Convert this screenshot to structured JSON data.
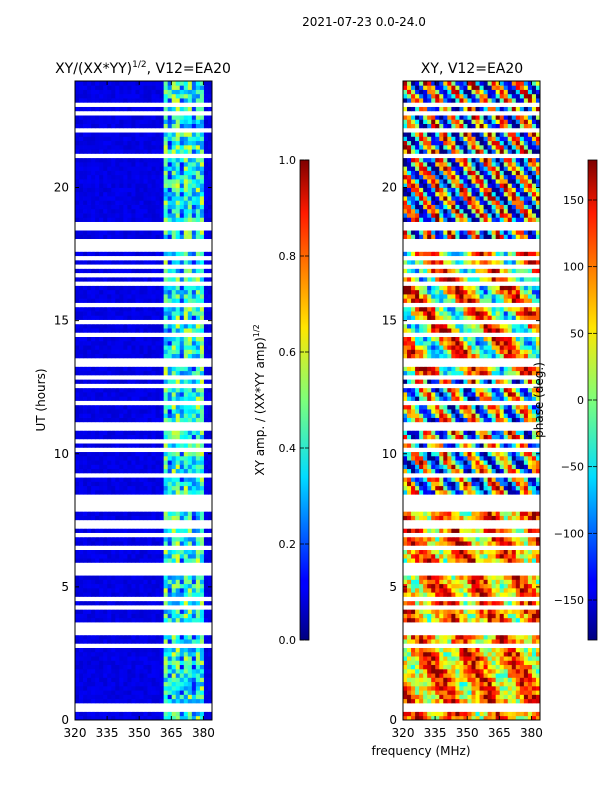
{
  "figure": {
    "suptitle": "2021-07-23 0.0-24.0",
    "shared_xlabel": "frequency (MHz)"
  },
  "chart_data": [
    {
      "type": "heatmap",
      "title": "XY/(XX*YY)",
      "title_exponent": "1/2",
      "title_suffix": ", V12=EA20",
      "xlabel": "frequency (MHz)",
      "ylabel": "UT (hours)",
      "xlim": [
        320,
        384
      ],
      "ylim": [
        0,
        24
      ],
      "xticks": [
        320,
        335,
        350,
        365,
        380
      ],
      "yticks": [
        0,
        5,
        10,
        15,
        20
      ],
      "colormap": "jet",
      "colorbar": {
        "label": "XY amp. / (XX*YY amp)",
        "label_exponent": "1/2",
        "range": [
          0.0,
          1.0
        ],
        "ticks": [
          "0.0",
          "0.2",
          "0.4",
          "0.6",
          "0.8",
          "1.0"
        ],
        "tick_values": [
          0.0,
          0.2,
          0.4,
          0.6,
          0.8,
          1.0
        ]
      },
      "description_values": {
        "background_level": 0.1,
        "high_band_freq_MHz": [
          361,
          381
        ],
        "high_band_level": 0.45
      },
      "flagged_ut_hours": [
        0.35,
        0.5,
        1.45,
        2.85,
        3.05,
        3.25,
        3.45,
        3.6,
        4.25,
        4.55,
        5.45,
        5.65,
        5.85,
        6.55,
        6.9,
        7.35,
        7.5,
        7.9,
        8.05,
        8.3,
        8.45,
        9.15,
        9.45,
        10.2,
        10.45,
        10.9,
        11.05,
        11.95,
        12.6,
        12.9,
        13.4,
        13.55,
        14.45,
        15.0,
        15.6,
        16.0,
        16.45,
        16.75,
        17.0,
        17.3,
        17.45,
        17.7,
        17.9,
        18.05,
        18.45,
        18.6,
        21.15,
        22.2,
        22.55,
        22.85,
        23.15,
        23.35
      ]
    },
    {
      "type": "heatmap",
      "title": "XY, V12=EA20",
      "xlabel": "frequency (MHz)",
      "ylabel": "",
      "xlim": [
        320,
        384
      ],
      "ylim": [
        0,
        24
      ],
      "xticks": [
        320,
        335,
        350,
        365,
        380
      ],
      "yticks": [
        0,
        5,
        10,
        15,
        20
      ],
      "colormap": "jet",
      "colorbar": {
        "label": "phase (deg.)",
        "range": [
          -180,
          180
        ],
        "ticks": [
          "150",
          "100",
          "50",
          "0",
          "−50",
          "−100",
          "−150"
        ],
        "tick_values": [
          150,
          100,
          50,
          0,
          -50,
          -100,
          -150
        ]
      },
      "flagged_ut_hours": [
        0.35,
        0.5,
        1.45,
        2.85,
        3.05,
        3.25,
        3.45,
        3.6,
        4.25,
        4.55,
        5.45,
        5.65,
        5.85,
        6.55,
        6.9,
        7.35,
        7.5,
        7.9,
        8.05,
        8.3,
        8.45,
        9.15,
        9.45,
        10.2,
        10.45,
        10.9,
        11.05,
        11.95,
        12.6,
        12.9,
        13.4,
        13.55,
        14.45,
        15.0,
        15.6,
        16.0,
        16.45,
        16.75,
        17.0,
        17.3,
        17.45,
        17.7,
        17.9,
        18.05,
        18.45,
        18.6,
        21.15,
        22.2,
        22.55,
        22.85,
        23.15,
        23.35
      ]
    }
  ]
}
